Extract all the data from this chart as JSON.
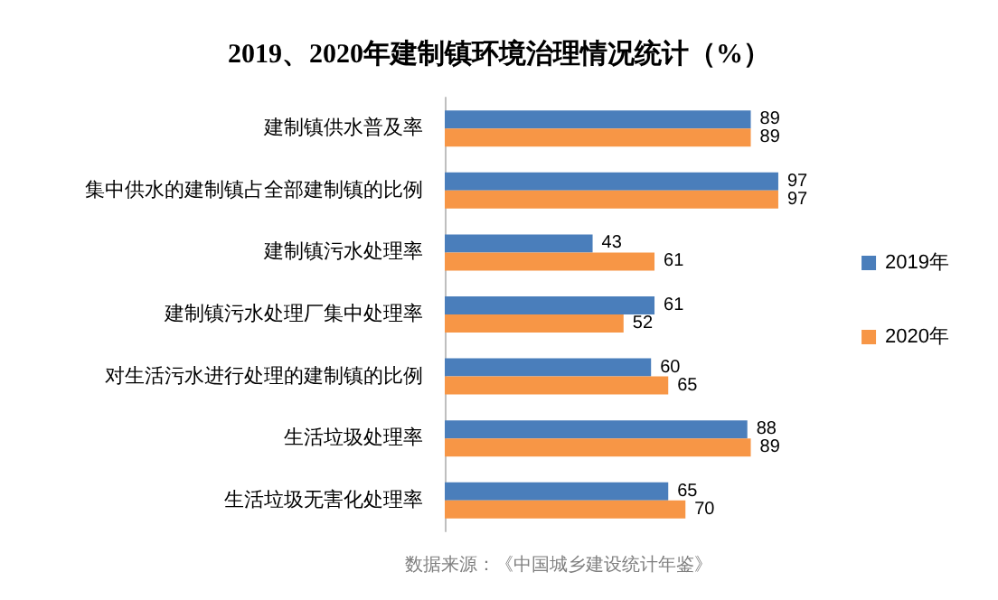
{
  "chart_data": {
    "type": "bar",
    "orientation": "horizontal",
    "title": "2019、2020年建制镇环境治理情况统计（%）",
    "categories": [
      "建制镇供水普及率",
      "集中供水的建制镇占全部建制镇的比例",
      "建制镇污水处理率",
      "建制镇污水处理厂集中处理率",
      "对生活污水进行处理的建制镇的比例",
      "生活垃圾处理率",
      "生活垃圾无害化处理率"
    ],
    "series": [
      {
        "name": "2019年",
        "color": "#4a7ebb",
        "values": [
          89,
          97,
          43,
          61,
          60,
          88,
          65
        ]
      },
      {
        "name": "2020年",
        "color": "#f79646",
        "values": [
          89,
          97,
          61,
          52,
          65,
          89,
          70
        ]
      }
    ],
    "data_labels": true,
    "legend": "right",
    "annotations": [
      "数据来源：《中国城乡建设统计年鉴》"
    ]
  }
}
